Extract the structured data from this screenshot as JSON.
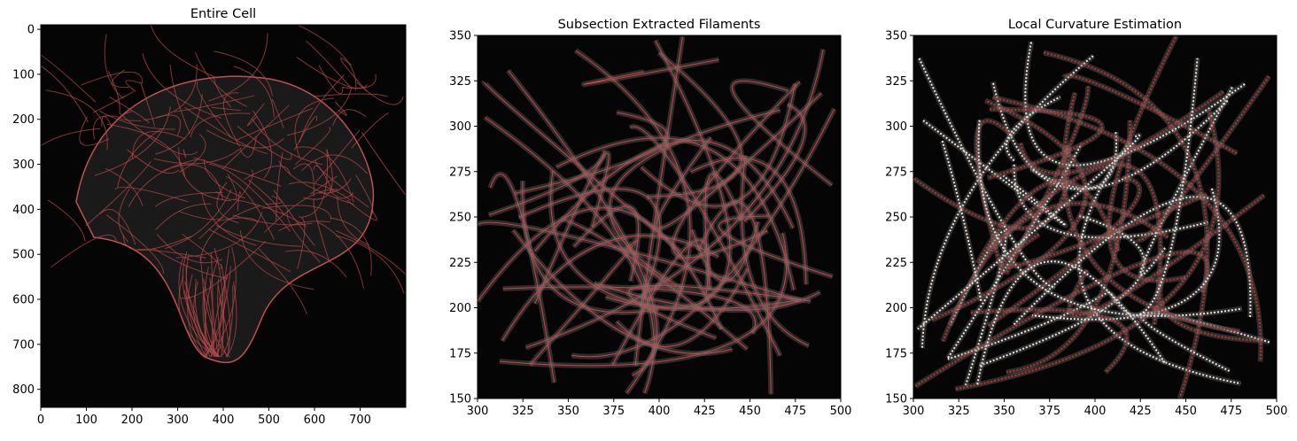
{
  "chart_data": [
    {
      "type": "image",
      "title": "Entire Cell",
      "xlim": [
        0,
        800
      ],
      "ylim": [
        840,
        -10
      ],
      "xticks": [
        0,
        100,
        200,
        300,
        400,
        500,
        600,
        700
      ],
      "yticks": [
        0,
        100,
        200,
        300,
        400,
        500,
        600,
        700,
        800
      ]
    },
    {
      "type": "image",
      "title": "Subsection Extracted Filaments",
      "xlim": [
        300,
        500
      ],
      "ylim": [
        150,
        350
      ],
      "xticks": [
        300,
        325,
        350,
        375,
        400,
        425,
        450,
        475,
        500
      ],
      "yticks": [
        150,
        175,
        200,
        225,
        250,
        275,
        300,
        325,
        350
      ]
    },
    {
      "type": "image",
      "title": "Local Curvature Estimation",
      "xlim": [
        300,
        500
      ],
      "ylim": [
        150,
        350
      ],
      "xticks": [
        300,
        325,
        350,
        375,
        400,
        425,
        450,
        475,
        500
      ],
      "yticks": [
        150,
        175,
        200,
        225,
        250,
        275,
        300,
        325,
        350
      ]
    }
  ]
}
